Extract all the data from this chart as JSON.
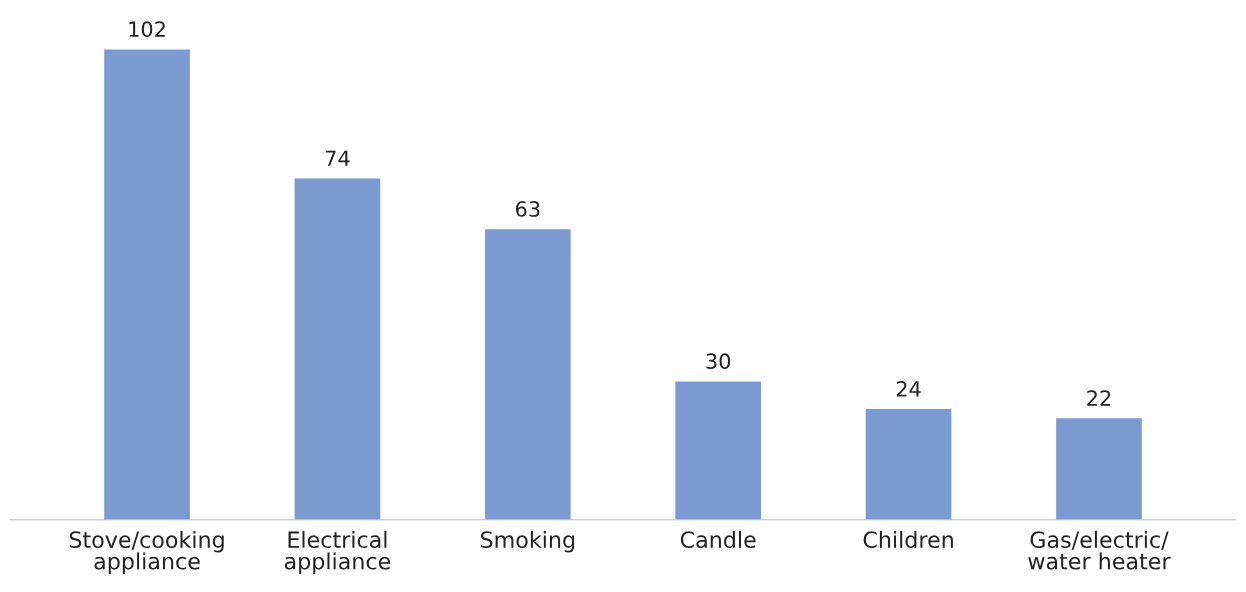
{
  "chart_data": {
    "type": "bar",
    "categories": [
      "Stove/cooking\nappliance",
      "Electrical\nappliance",
      "Smoking",
      "Candle",
      "Children",
      "Gas/electric/\nwater heater"
    ],
    "values": [
      102,
      74,
      63,
      30,
      24,
      22
    ],
    "color": "#7b9bd0",
    "data_labels": true,
    "grid": false,
    "legend": false
  }
}
